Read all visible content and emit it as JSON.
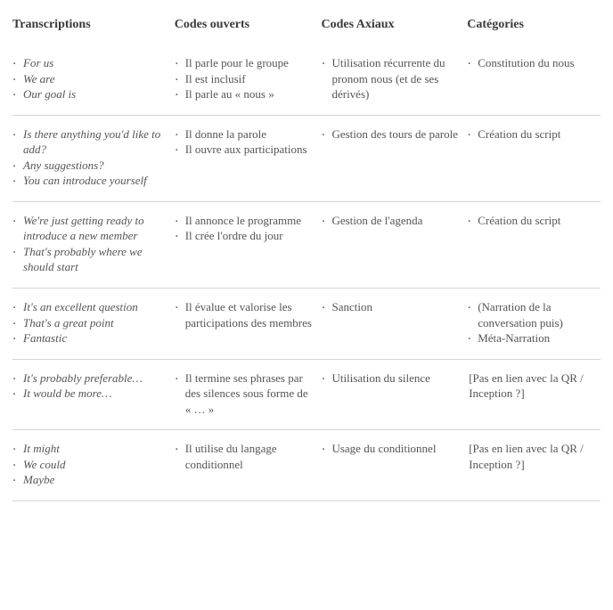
{
  "headers": {
    "c1": "Transcriptions",
    "c2": "Codes ouverts",
    "c3": "Codes Axiaux",
    "c4": "Catégories"
  },
  "rows": [
    {
      "transcriptions": [
        "For us",
        "We are",
        "Our goal is"
      ],
      "codes_ouverts": [
        "Il parle pour le groupe",
        "Il est inclusif",
        "Il parle au « nous »"
      ],
      "codes_axiaux": [
        "Utilisation récurrente du pronom nous (et de ses dérivés)"
      ],
      "categories": [
        "Constitution du nous"
      ],
      "categories_plain": null
    },
    {
      "transcriptions": [
        "Is there anything you'd like to add?",
        "Any suggestions?",
        "You can introduce yourself"
      ],
      "codes_ouverts": [
        "Il donne la parole",
        "Il ouvre aux participations"
      ],
      "codes_axiaux": [
        "Gestion des tours de parole"
      ],
      "categories": [
        "Création du script"
      ],
      "categories_plain": null
    },
    {
      "transcriptions": [
        "We're just getting ready to introduce a new member",
        "That's probably where we should start"
      ],
      "codes_ouverts": [
        "Il annonce le programme",
        "Il crée l'ordre du jour"
      ],
      "codes_axiaux": [
        "Gestion de l'agenda"
      ],
      "categories": [
        "Création du script"
      ],
      "categories_plain": null
    },
    {
      "transcriptions": [
        "It's an excellent question",
        "That's a great point",
        "Fantastic"
      ],
      "codes_ouverts": [
        "Il évalue et valorise les participations des membres"
      ],
      "codes_axiaux": [
        "Sanction"
      ],
      "categories": [
        "(Narration de la conversation puis)",
        "Méta-Narration"
      ],
      "categories_plain": null
    },
    {
      "transcriptions": [
        "It's probably preferable…",
        "It would be more…"
      ],
      "codes_ouverts": [
        "Il termine ses phrases par des silences sous forme de « … »"
      ],
      "codes_axiaux": [
        "Utilisation du silence"
      ],
      "categories": [],
      "categories_plain": "[Pas en lien avec la QR / Inception ?]"
    },
    {
      "transcriptions": [
        "It might",
        "We could",
        "Maybe"
      ],
      "codes_ouverts": [
        "Il utilise du langage conditionnel"
      ],
      "codes_axiaux": [
        "Usage du conditionnel"
      ],
      "categories": [],
      "categories_plain": "[Pas en lien avec la QR / Inception ?]"
    }
  ]
}
